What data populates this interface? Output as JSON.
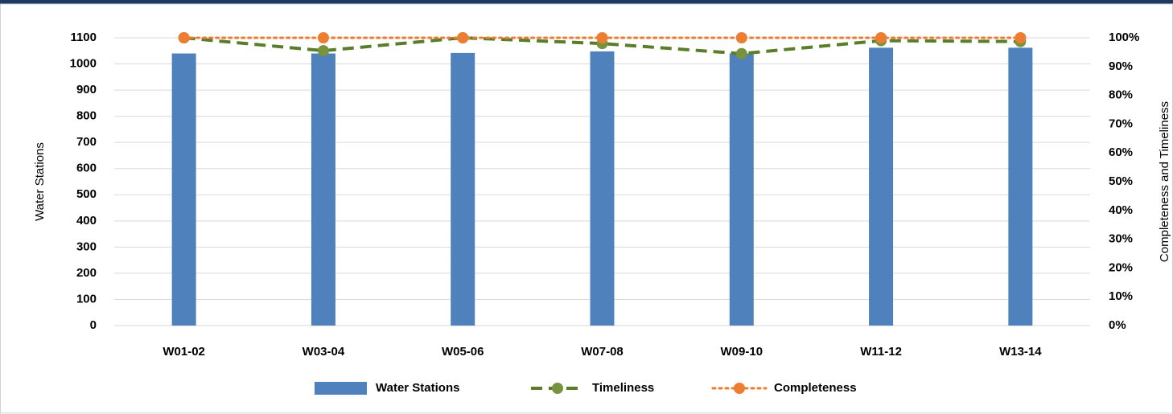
{
  "chart_data": {
    "type": "bar-line",
    "y_label": "Water Stations",
    "y2_label": "Completeness and Timeliness",
    "categories": [
      "W01-02",
      "W03-04",
      "W05-06",
      "W07-08",
      "W09-10",
      "W11-12",
      "W13-14"
    ],
    "series": [
      {
        "name": "Water Stations",
        "type": "bar",
        "color": "#4f81bd",
        "axis": "y",
        "values": [
          1040,
          1040,
          1042,
          1048,
          1040,
          1062,
          1062
        ]
      },
      {
        "name": "Timeliness",
        "type": "line",
        "style": "dashed",
        "color": "#5a7d2a",
        "axis": "y2",
        "values": [
          100,
          95.5,
          100,
          98,
          94.5,
          99,
          98.7
        ]
      },
      {
        "name": "Completeness",
        "type": "line",
        "style": "dotted",
        "color": "#ed7d31",
        "axis": "y2",
        "values": [
          100,
          100,
          100,
          100,
          100,
          100,
          100
        ]
      }
    ],
    "ylim": [
      0,
      1100
    ],
    "yticks": [
      0,
      100,
      200,
      300,
      400,
      500,
      600,
      700,
      800,
      900,
      1000,
      1100
    ],
    "y2lim": [
      0,
      100
    ],
    "y2ticks": [
      {
        "value": 0,
        "label": "0%"
      },
      {
        "value": 10,
        "label": "10%"
      },
      {
        "value": 20,
        "label": "20%"
      },
      {
        "value": 30,
        "label": "30%"
      },
      {
        "value": 40,
        "label": "40%"
      },
      {
        "value": 50,
        "label": "50%"
      },
      {
        "value": 60,
        "label": "60%"
      },
      {
        "value": 70,
        "label": "70%"
      },
      {
        "value": 80,
        "label": "80%"
      },
      {
        "value": 90,
        "label": "90%"
      },
      {
        "value": 100,
        "label": "100%"
      }
    ],
    "grid": true
  }
}
